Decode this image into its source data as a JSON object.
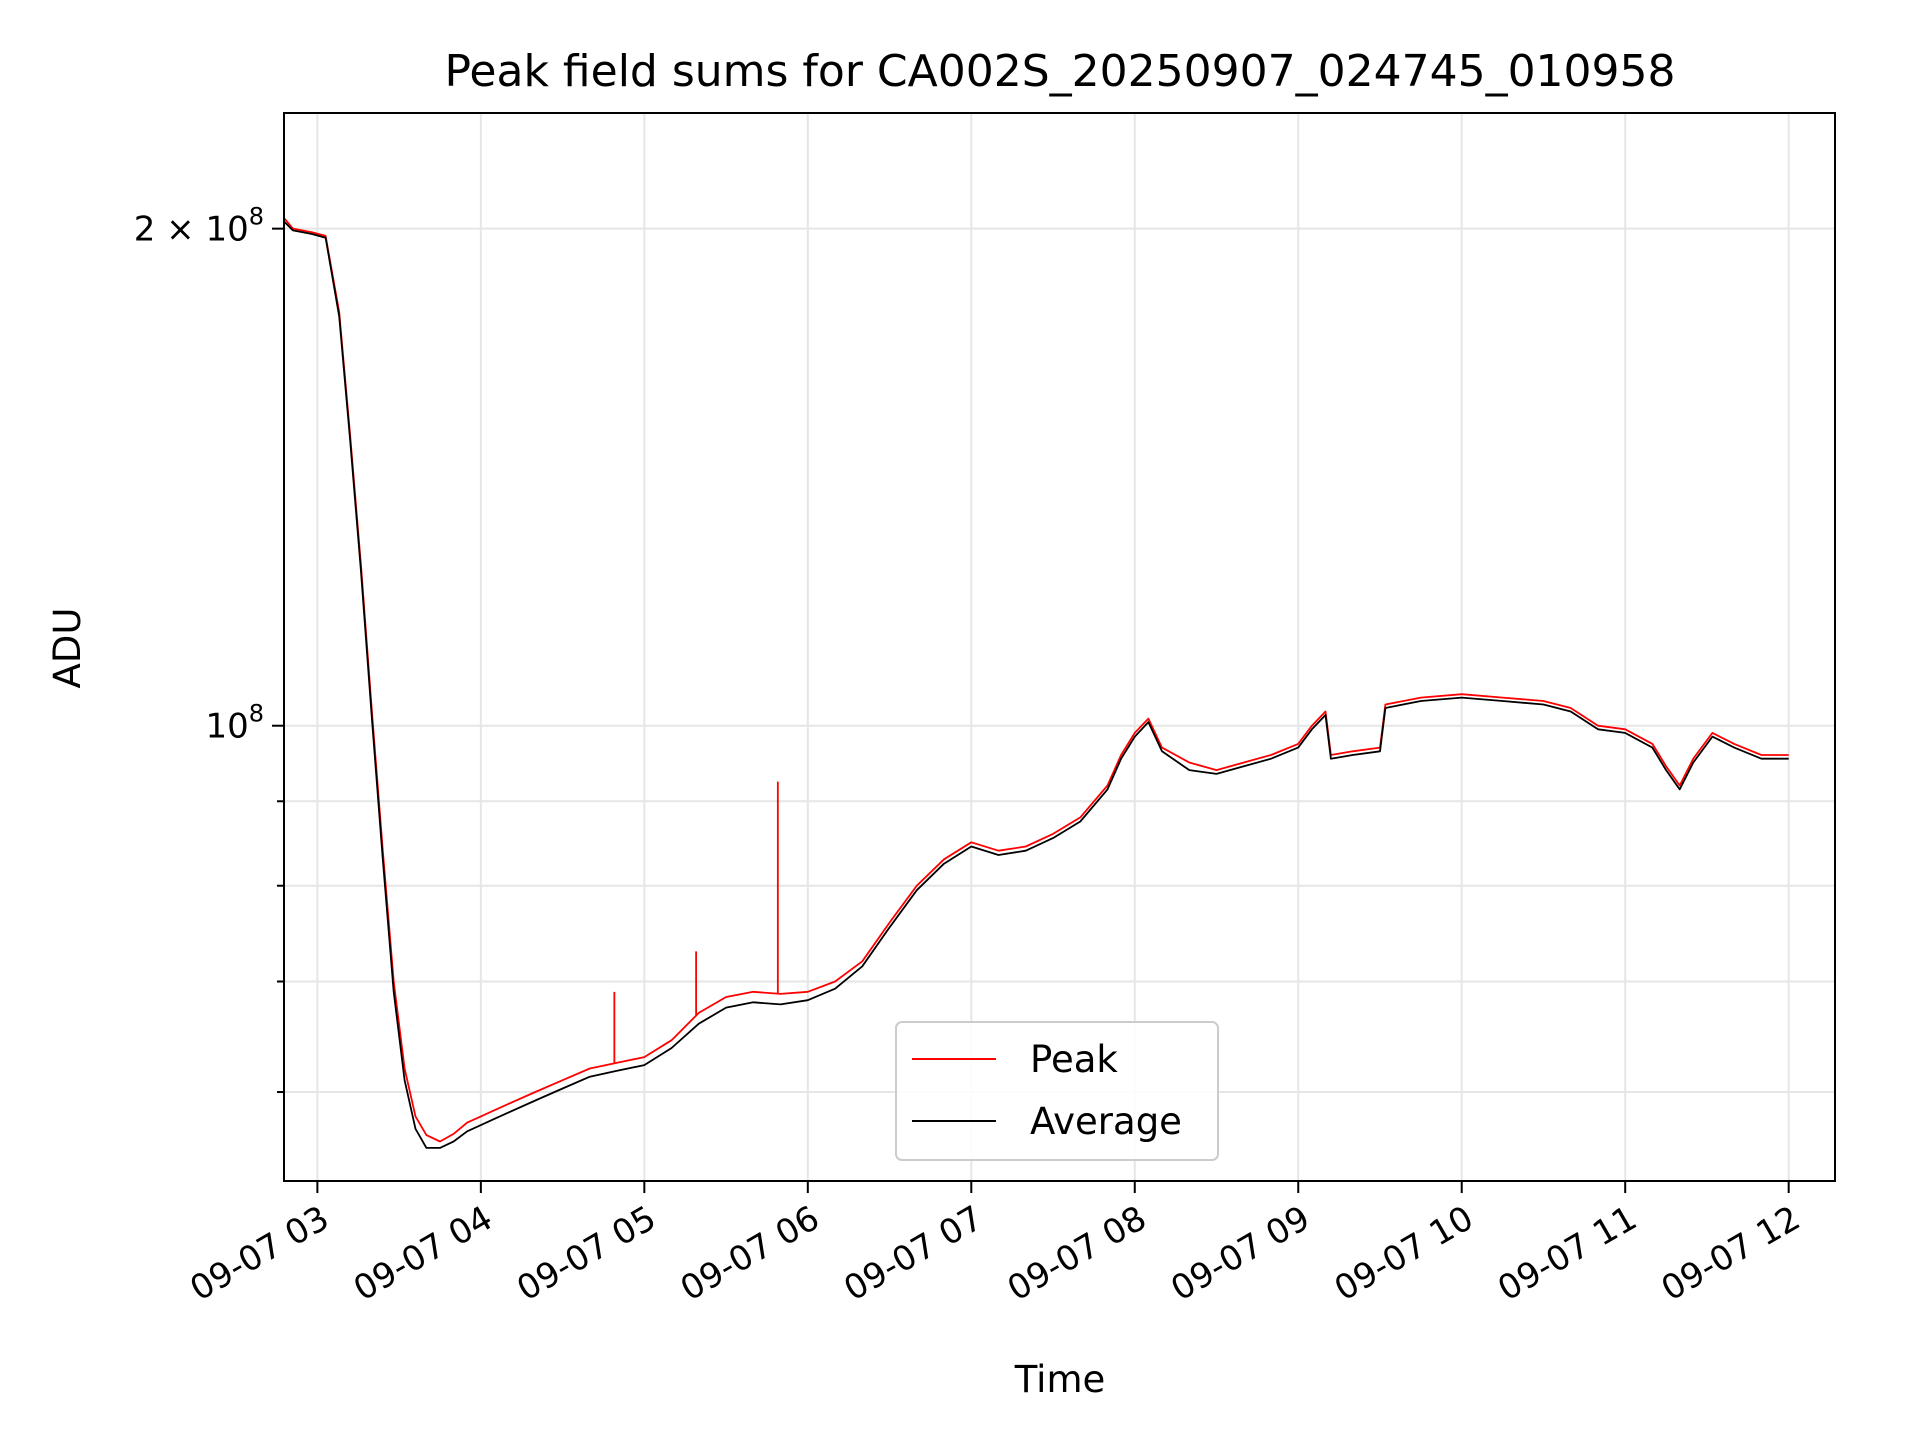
{
  "chart_data": {
    "type": "line",
    "title": "Peak field sums for CA002S_20250907_024745_010958",
    "xlabel": "Time",
    "ylabel": "ADU",
    "xlim": [
      "09-07 02:47:45",
      "09-07 12:17:00"
    ],
    "ylim": [
      53000000,
      235000000
    ],
    "yscale": "log",
    "grid": true,
    "legend_position": "lower-center",
    "x_ticks": [
      {
        "time": "09-07 03:00",
        "label": "09-07 03"
      },
      {
        "time": "09-07 04:00",
        "label": "09-07 04"
      },
      {
        "time": "09-07 05:00",
        "label": "09-07 05"
      },
      {
        "time": "09-07 06:00",
        "label": "09-07 06"
      },
      {
        "time": "09-07 07:00",
        "label": "09-07 07"
      },
      {
        "time": "09-07 08:00",
        "label": "09-07 08"
      },
      {
        "time": "09-07 09:00",
        "label": "09-07 09"
      },
      {
        "time": "09-07 10:00",
        "label": "09-07 10"
      },
      {
        "time": "09-07 11:00",
        "label": "09-07 11"
      },
      {
        "time": "09-07 12:00",
        "label": "09-07 12"
      }
    ],
    "y_major_ticks": [
      {
        "value": 100000000,
        "base": "10",
        "exp": "8"
      },
      {
        "value": 200000000,
        "base": "2 × 10",
        "exp": "8"
      }
    ],
    "y_minor_ticks": [
      60000000,
      70000000,
      80000000,
      90000000
    ],
    "series": [
      {
        "name": "Peak",
        "color": "#ff0000",
        "points": [
          [
            "09-07 02:47:45",
            203000000
          ],
          [
            "09-07 02:51",
            200000000
          ],
          [
            "09-07 02:58",
            199000000
          ],
          [
            "09-07 03:03",
            198000000
          ],
          [
            "09-07 03:08",
            178000000
          ],
          [
            "09-07 03:12",
            150000000
          ],
          [
            "09-07 03:16",
            125000000
          ],
          [
            "09-07 03:20",
            102000000
          ],
          [
            "09-07 03:24",
            84000000
          ],
          [
            "09-07 03:28",
            70000000
          ],
          [
            "09-07 03:32",
            62000000
          ],
          [
            "09-07 03:36",
            58000000
          ],
          [
            "09-07 03:40",
            56500000
          ],
          [
            "09-07 03:45",
            56000000
          ],
          [
            "09-07 03:50",
            56600000
          ],
          [
            "09-07 03:55",
            57500000
          ],
          [
            "09-07 04:00",
            58000000
          ],
          [
            "09-07 04:05",
            58500000
          ],
          [
            "09-07 04:10",
            59000000
          ],
          [
            "09-07 04:20",
            60000000
          ],
          [
            "09-07 04:30",
            61000000
          ],
          [
            "09-07 04:40",
            62000000
          ],
          [
            "09-07 04:50",
            62500000
          ],
          [
            "09-07 05:00",
            63000000
          ],
          [
            "09-07 05:10",
            64500000
          ],
          [
            "09-07 05:20",
            67000000
          ],
          [
            "09-07 05:30",
            68500000
          ],
          [
            "09-07 05:40",
            69000000
          ],
          [
            "09-07 05:50",
            68800000
          ],
          [
            "09-07 06:00",
            69000000
          ],
          [
            "09-07 06:10",
            70000000
          ],
          [
            "09-07 06:20",
            72000000
          ],
          [
            "09-07 06:30",
            76000000
          ],
          [
            "09-07 06:40",
            80000000
          ],
          [
            "09-07 06:50",
            83000000
          ],
          [
            "09-07 07:00",
            85000000
          ],
          [
            "09-07 07:10",
            84000000
          ],
          [
            "09-07 07:20",
            84500000
          ],
          [
            "09-07 07:30",
            86000000
          ],
          [
            "09-07 07:40",
            88000000
          ],
          [
            "09-07 07:50",
            92000000
          ],
          [
            "09-07 07:55",
            96000000
          ],
          [
            "09-07 08:00",
            99000000
          ],
          [
            "09-07 08:05",
            101000000
          ],
          [
            "09-07 08:10",
            97000000
          ],
          [
            "09-07 08:20",
            95000000
          ],
          [
            "09-07 08:30",
            94000000
          ],
          [
            "09-07 08:40",
            95000000
          ],
          [
            "09-07 08:50",
            96000000
          ],
          [
            "09-07 09:00",
            97500000
          ],
          [
            "09-07 09:05",
            100000000
          ],
          [
            "09-07 09:10",
            102000000
          ],
          [
            "09-07 09:12",
            96000000
          ],
          [
            "09-07 09:20",
            96500000
          ],
          [
            "09-07 09:30",
            97000000
          ],
          [
            "09-07 09:32",
            103000000
          ],
          [
            "09-07 09:45",
            104000000
          ],
          [
            "09-07 10:00",
            104500000
          ],
          [
            "09-07 10:15",
            104000000
          ],
          [
            "09-07 10:30",
            103500000
          ],
          [
            "09-07 10:40",
            102500000
          ],
          [
            "09-07 10:50",
            100000000
          ],
          [
            "09-07 11:00",
            99500000
          ],
          [
            "09-07 11:10",
            97500000
          ],
          [
            "09-07 11:15",
            94500000
          ],
          [
            "09-07 11:20",
            92000000
          ],
          [
            "09-07 11:25",
            95500000
          ],
          [
            "09-07 11:32",
            99000000
          ],
          [
            "09-07 11:40",
            97500000
          ],
          [
            "09-07 11:50",
            96000000
          ],
          [
            "09-07 12:00",
            96000000
          ]
        ]
      },
      {
        "name": "Average",
        "color": "#000000",
        "points": [
          [
            "09-07 02:47:45",
            202000000
          ],
          [
            "09-07 02:51",
            199500000
          ],
          [
            "09-07 02:58",
            198500000
          ],
          [
            "09-07 03:03",
            197500000
          ],
          [
            "09-07 03:08",
            177000000
          ],
          [
            "09-07 03:12",
            149000000
          ],
          [
            "09-07 03:16",
            124000000
          ],
          [
            "09-07 03:20",
            101000000
          ],
          [
            "09-07 03:24",
            83000000
          ],
          [
            "09-07 03:28",
            69000000
          ],
          [
            "09-07 03:32",
            61000000
          ],
          [
            "09-07 03:36",
            57000000
          ],
          [
            "09-07 03:40",
            55500000
          ],
          [
            "09-07 03:45",
            55500000
          ],
          [
            "09-07 03:50",
            56000000
          ],
          [
            "09-07 03:55",
            56800000
          ],
          [
            "09-07 04:00",
            57300000
          ],
          [
            "09-07 04:05",
            57800000
          ],
          [
            "09-07 04:10",
            58300000
          ],
          [
            "09-07 04:20",
            59300000
          ],
          [
            "09-07 04:30",
            60300000
          ],
          [
            "09-07 04:40",
            61300000
          ],
          [
            "09-07 04:50",
            61800000
          ],
          [
            "09-07 05:00",
            62300000
          ],
          [
            "09-07 05:10",
            63800000
          ],
          [
            "09-07 05:20",
            66000000
          ],
          [
            "09-07 05:30",
            67500000
          ],
          [
            "09-07 05:40",
            68000000
          ],
          [
            "09-07 05:50",
            67800000
          ],
          [
            "09-07 06:00",
            68200000
          ],
          [
            "09-07 06:10",
            69300000
          ],
          [
            "09-07 06:20",
            71500000
          ],
          [
            "09-07 06:30",
            75500000
          ],
          [
            "09-07 06:40",
            79500000
          ],
          [
            "09-07 06:50",
            82500000
          ],
          [
            "09-07 07:00",
            84500000
          ],
          [
            "09-07 07:10",
            83500000
          ],
          [
            "09-07 07:20",
            84000000
          ],
          [
            "09-07 07:30",
            85500000
          ],
          [
            "09-07 07:40",
            87500000
          ],
          [
            "09-07 07:50",
            91500000
          ],
          [
            "09-07 07:55",
            95500000
          ],
          [
            "09-07 08:00",
            98500000
          ],
          [
            "09-07 08:05",
            100500000
          ],
          [
            "09-07 08:10",
            96500000
          ],
          [
            "09-07 08:20",
            94000000
          ],
          [
            "09-07 08:30",
            93500000
          ],
          [
            "09-07 08:40",
            94500000
          ],
          [
            "09-07 08:50",
            95500000
          ],
          [
            "09-07 09:00",
            97000000
          ],
          [
            "09-07 09:05",
            99500000
          ],
          [
            "09-07 09:10",
            101500000
          ],
          [
            "09-07 09:12",
            95500000
          ],
          [
            "09-07 09:20",
            96000000
          ],
          [
            "09-07 09:30",
            96500000
          ],
          [
            "09-07 09:32",
            102500000
          ],
          [
            "09-07 09:45",
            103500000
          ],
          [
            "09-07 10:00",
            104000000
          ],
          [
            "09-07 10:15",
            103500000
          ],
          [
            "09-07 10:30",
            103000000
          ],
          [
            "09-07 10:40",
            102000000
          ],
          [
            "09-07 10:50",
            99500000
          ],
          [
            "09-07 11:00",
            99000000
          ],
          [
            "09-07 11:10",
            97000000
          ],
          [
            "09-07 11:15",
            94000000
          ],
          [
            "09-07 11:20",
            91500000
          ],
          [
            "09-07 11:25",
            95000000
          ],
          [
            "09-07 11:32",
            98500000
          ],
          [
            "09-07 11:40",
            97000000
          ],
          [
            "09-07 11:50",
            95500000
          ],
          [
            "09-07 12:00",
            95500000
          ]
        ]
      }
    ],
    "spikes": [
      {
        "time": "09-07 04:49",
        "value": 69000000
      },
      {
        "time": "09-07 05:19",
        "value": 73000000
      },
      {
        "time": "09-07 05:49",
        "value": 92500000
      }
    ]
  }
}
